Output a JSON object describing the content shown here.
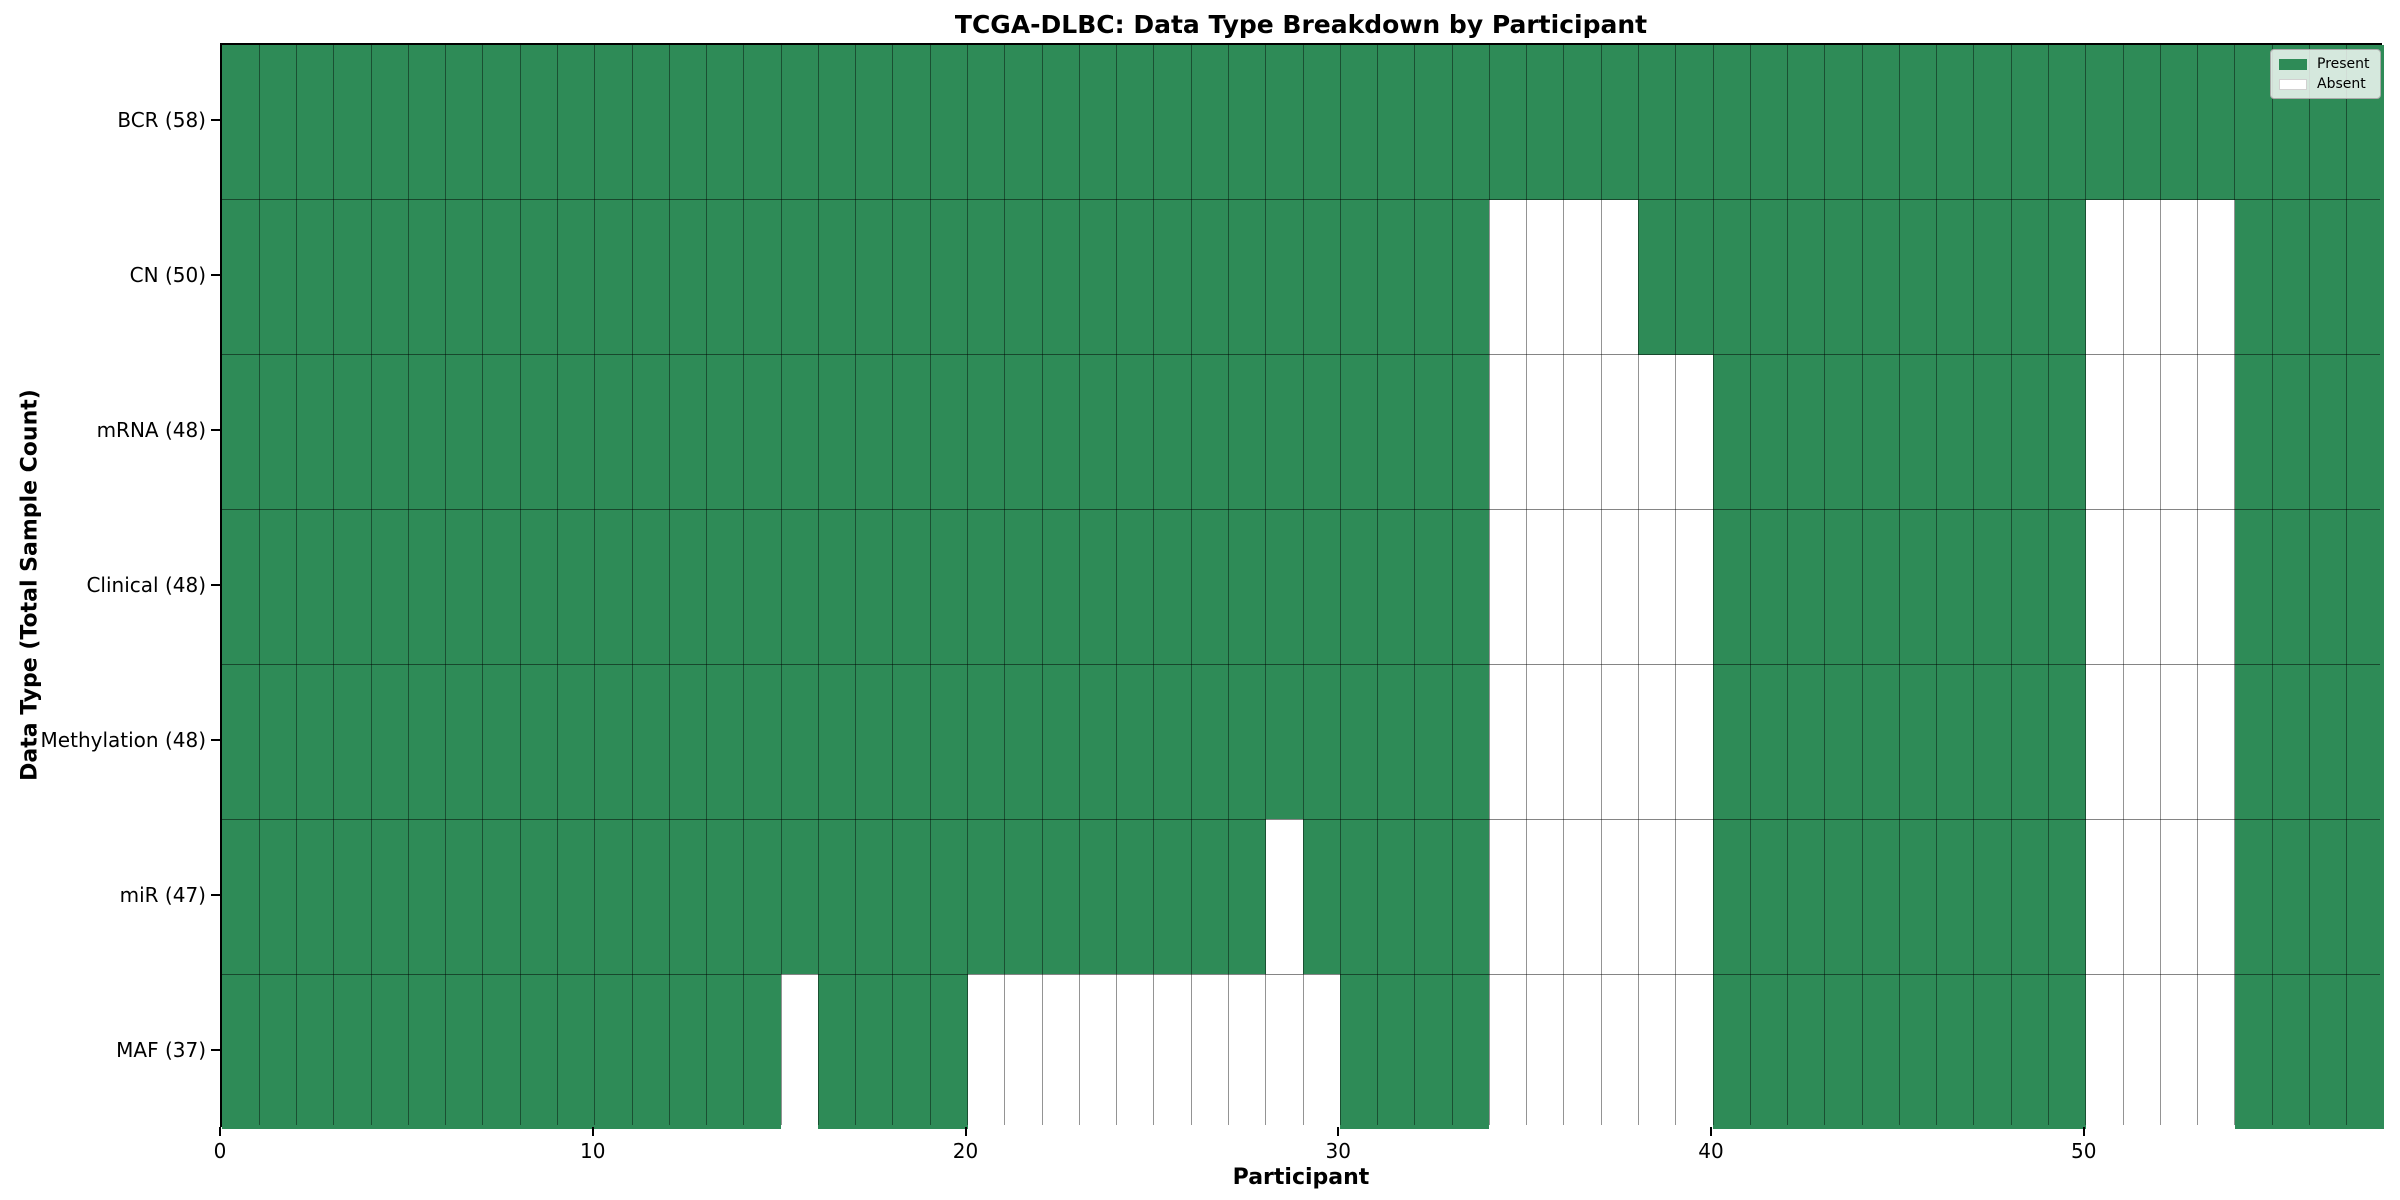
{
  "title": "TCGA-DLBC: Data Type Breakdown by Participant",
  "chart_data": {
    "type": "heatmap",
    "title": "TCGA-DLBC: Data Type Breakdown by Participant",
    "xlabel": "Participant",
    "ylabel": "Data Type (Total Sample Count)",
    "n_participants": 58,
    "x_range": [
      0,
      58
    ],
    "x_ticks": [
      0,
      10,
      20,
      30,
      40,
      50
    ],
    "grid": "cell-borders",
    "legend_position": "upper right",
    "legend": [
      {
        "label": "Present",
        "color": "#2e8b57"
      },
      {
        "label": "Absent",
        "color": "#ffffff"
      }
    ],
    "colors": {
      "present": "#2e8b57",
      "absent": "#ffffff"
    },
    "rows": [
      {
        "label": "BCR (58)",
        "name": "BCR",
        "present_count": 58,
        "absent_participants": []
      },
      {
        "label": "CN (50)",
        "name": "CN",
        "present_count": 50,
        "absent_participants": [
          34,
          35,
          36,
          37,
          50,
          51,
          52,
          53
        ]
      },
      {
        "label": "mRNA (48)",
        "name": "mRNA",
        "present_count": 48,
        "absent_participants": [
          34,
          35,
          36,
          37,
          38,
          39,
          50,
          51,
          52,
          53
        ]
      },
      {
        "label": "Clinical (48)",
        "name": "Clinical",
        "present_count": 48,
        "absent_participants": [
          34,
          35,
          36,
          37,
          38,
          39,
          50,
          51,
          52,
          53
        ]
      },
      {
        "label": "Methylation (48)",
        "name": "Methylation",
        "present_count": 48,
        "absent_participants": [
          34,
          35,
          36,
          37,
          38,
          39,
          50,
          51,
          52,
          53
        ]
      },
      {
        "label": "miR (47)",
        "name": "miR",
        "present_count": 47,
        "absent_participants": [
          28,
          34,
          35,
          36,
          37,
          38,
          39,
          50,
          51,
          52,
          53
        ]
      },
      {
        "label": "MAF (37)",
        "name": "MAF",
        "present_count": 37,
        "absent_participants": [
          15,
          20,
          21,
          22,
          23,
          24,
          25,
          26,
          27,
          28,
          29,
          34,
          35,
          36,
          37,
          38,
          39,
          50,
          51,
          52,
          53
        ]
      }
    ]
  }
}
